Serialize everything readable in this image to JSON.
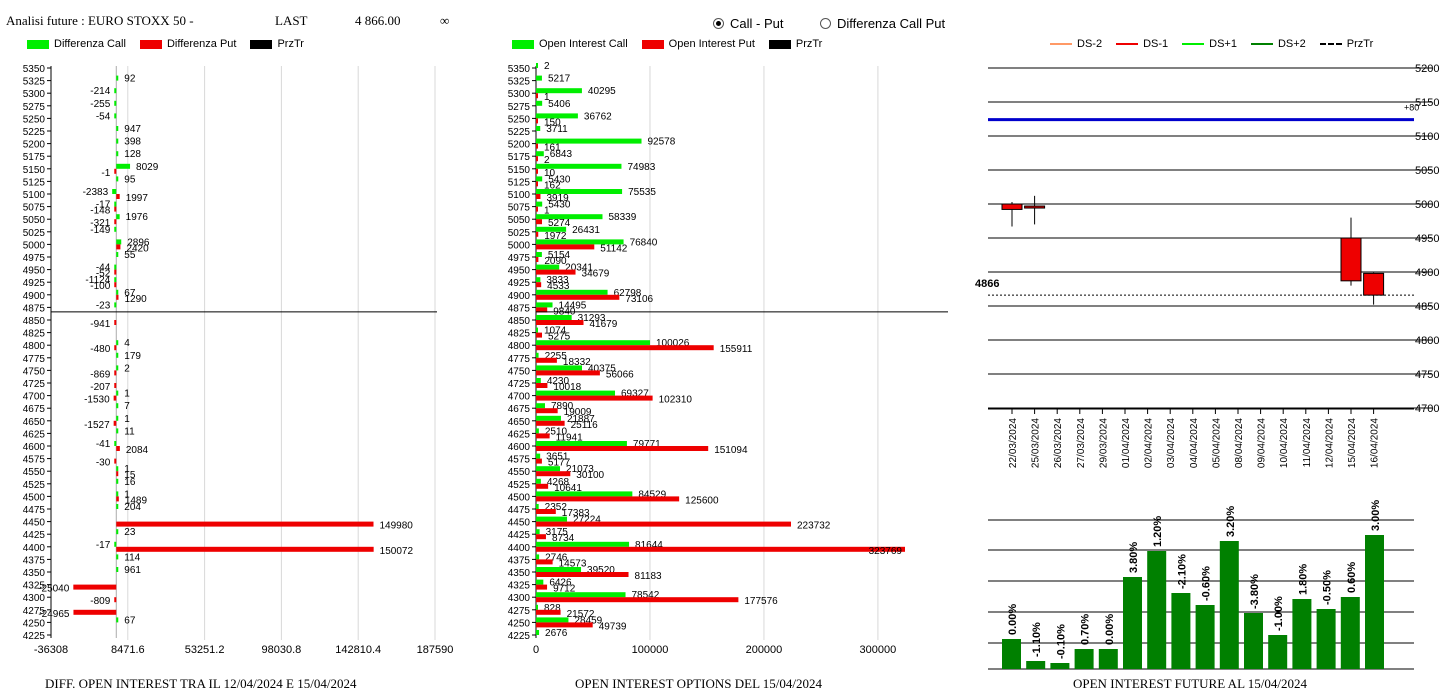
{
  "header": {
    "label": "Analisi future : EURO STOXX 50 -",
    "last_label": "LAST",
    "last_value": "4 866.00",
    "infinity": "∞"
  },
  "radio": {
    "options": [
      "Call - Put",
      "Differenza Call Put"
    ],
    "selected": "Call - Put"
  },
  "colors": {
    "call": "#00ee00",
    "put": "#ee0000",
    "price": "#000000",
    "future_bar": "#008000",
    "blue_line": "#0000cc"
  },
  "chart_data": [
    {
      "type": "bar",
      "orientation": "horizontal",
      "caption": "DIFF. OPEN INTEREST TRA IL 12/04/2024 E 15/04/2024",
      "legend": [
        "Differenza Call",
        "Differenza Put",
        "PrzTr"
      ],
      "categories": [
        5350,
        5325,
        5300,
        5275,
        5250,
        5225,
        5200,
        5175,
        5150,
        5125,
        5100,
        5075,
        5050,
        5025,
        5000,
        4975,
        4950,
        4925,
        4900,
        4875,
        4850,
        4825,
        4800,
        4775,
        4750,
        4725,
        4700,
        4675,
        4650,
        4625,
        4600,
        4575,
        4550,
        4525,
        4500,
        4475,
        4450,
        4425,
        4400,
        4375,
        4350,
        4325,
        4300,
        4275,
        4250,
        4225
      ],
      "series": [
        {
          "name": "Differenza Call",
          "values": [
            null,
            92,
            -214,
            -255,
            -54,
            947,
            398,
            128,
            8029,
            95,
            -2383,
            -17,
            1976,
            -149,
            2896,
            55,
            -44,
            -1124,
            67,
            -23,
            null,
            null,
            4,
            179,
            2,
            null,
            1,
            7,
            1,
            11,
            -41,
            null,
            1,
            16,
            1,
            204,
            null,
            23,
            -17,
            114,
            961,
            null,
            null,
            null,
            67,
            null
          ]
        },
        {
          "name": "Differenza Put",
          "values": [
            null,
            null,
            null,
            null,
            null,
            null,
            null,
            null,
            -1,
            null,
            1997,
            -148,
            -321,
            null,
            2420,
            null,
            -52,
            -100,
            1290,
            null,
            -941,
            null,
            -480,
            null,
            -869,
            -207,
            -1530,
            null,
            -1527,
            null,
            2084,
            -30,
            15,
            null,
            1489,
            null,
            149980,
            null,
            150072,
            null,
            null,
            -25040,
            -809,
            -24965,
            null,
            null
          ]
        }
      ],
      "xticks": [
        "-36308",
        "8471.6",
        "53251.2",
        "98030.8",
        "142810.4",
        "187590"
      ],
      "xlim": [
        -36308,
        187590
      ],
      "price_strike": 4866
    },
    {
      "type": "bar",
      "orientation": "horizontal",
      "caption": "OPEN INTEREST OPTIONS DEL 15/04/2024",
      "legend": [
        "Open Interest Call",
        "Open Interest Put",
        "PrzTr"
      ],
      "categories": [
        5350,
        5325,
        5300,
        5275,
        5250,
        5225,
        5200,
        5175,
        5150,
        5125,
        5100,
        5075,
        5050,
        5025,
        5000,
        4975,
        4950,
        4925,
        4900,
        4875,
        4850,
        4825,
        4800,
        4775,
        4750,
        4725,
        4700,
        4675,
        4650,
        4625,
        4600,
        4575,
        4550,
        4525,
        4500,
        4475,
        4450,
        4425,
        4400,
        4375,
        4350,
        4325,
        4300,
        4275,
        4250,
        4225
      ],
      "series": [
        {
          "name": "Open Interest Call",
          "values": [
            2,
            5217,
            40295,
            5406,
            36762,
            3711,
            92578,
            6843,
            74983,
            5430,
            75535,
            5430,
            58339,
            26431,
            76840,
            5154,
            20341,
            3833,
            62798,
            14495,
            31293,
            1074,
            100026,
            2255,
            40375,
            4230,
            69327,
            7890,
            21887,
            2510,
            79771,
            3651,
            21073,
            4268,
            84529,
            2352,
            27224,
            3175,
            81644,
            2746,
            39520,
            6426,
            78542,
            828,
            28459,
            2676
          ]
        },
        {
          "name": "Open Interest Put",
          "values": [
            null,
            null,
            1,
            null,
            150,
            null,
            161,
            2,
            10,
            162,
            3919,
            1,
            5274,
            1972,
            51142,
            2090,
            34679,
            4533,
            73106,
            9840,
            41679,
            5275,
            155911,
            18332,
            56066,
            10018,
            102310,
            19009,
            25116,
            11941,
            151094,
            5177,
            30100,
            10641,
            125600,
            17383,
            223732,
            8734,
            323769,
            14573,
            81183,
            9712,
            177576,
            21572,
            49739,
            null
          ]
        }
      ],
      "xticks": [
        "0",
        "100000",
        "200000",
        "300000"
      ],
      "xlim": [
        0,
        323769
      ],
      "price_strike": 4866
    },
    {
      "type": "candlestick",
      "legend": [
        "DS-2",
        "DS-1",
        "DS+1",
        "DS+2",
        "PrzTr"
      ],
      "legend_colors": [
        "#ff9966",
        "#ee0000",
        "#00ee00",
        "#008000",
        "#000000"
      ],
      "dates": [
        "22/03/2024",
        "25/03/2024",
        "26/03/2024",
        "27/03/2024",
        "29/03/2024",
        "01/04/2024",
        "02/04/2024",
        "03/04/2024",
        "04/04/2024",
        "05/04/2024",
        "08/04/2024",
        "09/04/2024",
        "10/04/2024",
        "11/04/2024",
        "12/04/2024",
        "15/04/2024",
        "16/04/2024"
      ],
      "candles": [
        {
          "i": 0,
          "open": 5000,
          "close": 4992,
          "high": 5003,
          "low": 4967
        },
        {
          "i": 1,
          "open": 4997,
          "close": 4995,
          "high": 5012,
          "low": 4970
        },
        {
          "i": 15,
          "open": 4950,
          "close": 4887,
          "high": 4980,
          "low": 4880
        },
        {
          "i": 16,
          "open": 4898,
          "close": 4866,
          "high": 4899,
          "low": 4852
        }
      ],
      "yticks": [
        5200,
        5150,
        5100,
        5050,
        5000,
        4950,
        4900,
        4850,
        4800,
        4750,
        4700
      ],
      "ylim": [
        4700,
        5200
      ],
      "blue_line": 5124,
      "blue_line_label": "+80",
      "price": 4866,
      "price_label": "4866"
    },
    {
      "type": "bar",
      "caption": "OPEN INTEREST FUTURE AL 15/04/2024",
      "labels": [
        "0.00%",
        "-1.10%",
        "-0.10%",
        "0.70%",
        "0.00%",
        "3.80%",
        "1.20%",
        "-2.10%",
        "-0.60%",
        "3.20%",
        "-3.80%",
        "-1.00%",
        "1.80%",
        "-0.50%",
        "0.60%",
        "3.00%"
      ],
      "values": [
        0.0,
        -1.1,
        -0.1,
        0.7,
        0.0,
        3.8,
        1.2,
        -2.1,
        -0.6,
        3.2,
        -3.8,
        -1.0,
        1.8,
        -0.5,
        0.6,
        3.0
      ],
      "heights": [
        30,
        8,
        6,
        20,
        20,
        92,
        118,
        76,
        64,
        128,
        56,
        34,
        70,
        60,
        72,
        134
      ]
    }
  ]
}
